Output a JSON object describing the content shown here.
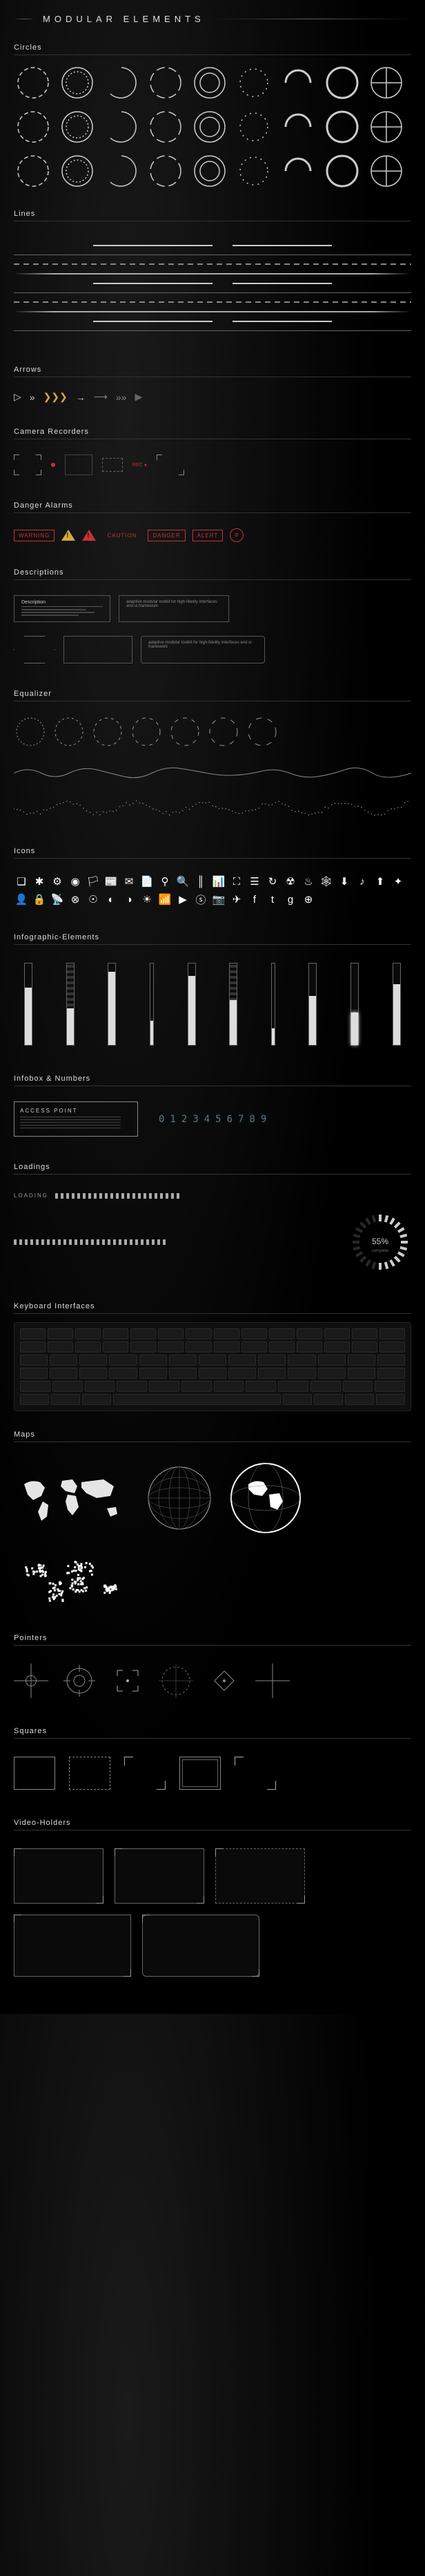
{
  "title": "MODULAR ELEMENTS",
  "sections": {
    "circles": "Circles",
    "lines": "Lines",
    "arrows": "Arrows",
    "camera": "Camera Recorders",
    "danger": "Danger Alarms",
    "descriptions": "Descriptions",
    "equalizer": "Equalizer",
    "icons": "Icons",
    "infographic": "Infographic-Elements",
    "infobox": "Infobox & Numbers",
    "loadings": "Loadings",
    "keyboard": "Keyboard Interfaces",
    "maps": "Maps",
    "pointers": "Pointers",
    "squares": "Squares",
    "video": "Video-Holders"
  },
  "colors": {
    "bg": "#000000",
    "text": "#ffffff",
    "muted": "#888888",
    "line": "#aaaaaa",
    "danger": "#c83232",
    "warning": "#d4a843",
    "digit": "#5a7a8a"
  },
  "circles": {
    "count": 27,
    "rows": 3,
    "stroke": "#cccccc",
    "variants": [
      "dashed",
      "partial",
      "dotted",
      "segment",
      "double",
      "thin",
      "thick",
      "arc",
      "target"
    ]
  },
  "lines": {
    "count": 10,
    "styles": [
      "solid",
      "dashed",
      "segment",
      "thin",
      "gradient",
      "dotted"
    ]
  },
  "arrows": {
    "items": [
      {
        "glyph": "▷",
        "color": "#cccccc"
      },
      {
        "glyph": "»",
        "color": "#cccccc"
      },
      {
        "glyph": "❯❯❯",
        "color": "#d4a843"
      },
      {
        "glyph": "→",
        "color": "#cccccc"
      },
      {
        "glyph": "⟶",
        "color": "#888888"
      },
      {
        "glyph": "»»",
        "color": "#888888"
      },
      {
        "glyph": "▶",
        "color": "#666666"
      }
    ]
  },
  "danger": {
    "items": [
      {
        "label": "WARNING",
        "color": "#c83232",
        "shape": "bracket"
      },
      {
        "label": "!",
        "color": "#d4a843",
        "shape": "triangle"
      },
      {
        "label": "!",
        "color": "#c83232",
        "shape": "triangle"
      },
      {
        "label": "CAUTION",
        "color": "#c83232",
        "shape": "text"
      },
      {
        "label": "DANGER",
        "color": "#c83232",
        "shape": "box"
      },
      {
        "label": "ALERT",
        "color": "#c83232",
        "shape": "bracket"
      },
      {
        "label": "⊘",
        "color": "#c83232",
        "shape": "circle"
      }
    ]
  },
  "descriptions": {
    "label": "Description",
    "lorem": "adaptive modular toolkit for high-fidelity interfaces and ui framework"
  },
  "icons": {
    "glyphs": [
      "❏",
      "✱",
      "⚙",
      "◉",
      "🏳",
      "📰",
      "✉",
      "📄",
      "⚲",
      "🔍",
      "║",
      "📊",
      "⛶",
      "☰",
      "↻",
      "☢",
      "♨",
      "🕸",
      "⬇",
      "♪",
      "⬆",
      "✦",
      "👤",
      "🔒",
      "📡",
      "⊗",
      "☉",
      "◐",
      "◑",
      "☀",
      "📶",
      "▶",
      "ⓢ",
      "📷",
      "✈",
      "f",
      "t",
      "g",
      "⊕"
    ],
    "count": 39,
    "color": "#ffffff"
  },
  "infographic": {
    "bars": [
      {
        "fill": 70,
        "style": "solid"
      },
      {
        "fill": 45,
        "style": "segment"
      },
      {
        "fill": 90,
        "style": "solid"
      },
      {
        "fill": 30,
        "style": "thin"
      },
      {
        "fill": 85,
        "style": "solid"
      },
      {
        "fill": 55,
        "style": "segment"
      },
      {
        "fill": 20,
        "style": "thin"
      },
      {
        "fill": 60,
        "style": "solid"
      },
      {
        "fill": 40,
        "style": "glow"
      },
      {
        "fill": 75,
        "style": "solid"
      }
    ]
  },
  "infobox": {
    "title": "ACCESS POINT",
    "digits": "0123456789"
  },
  "loadings": {
    "label": "LOADING",
    "percent": "55%",
    "sub": "complete"
  },
  "keyboard": {
    "rows": 6,
    "keys_per_row": [
      14,
      14,
      13,
      13,
      12,
      8
    ]
  },
  "pointers": {
    "count": 6,
    "types": [
      "crosshair",
      "target",
      "bracket",
      "scope",
      "reticle",
      "diamond"
    ]
  },
  "squares": {
    "count": 5,
    "types": [
      "solid",
      "dashed",
      "corners",
      "bracket",
      "double"
    ]
  },
  "video": {
    "count": 5
  }
}
